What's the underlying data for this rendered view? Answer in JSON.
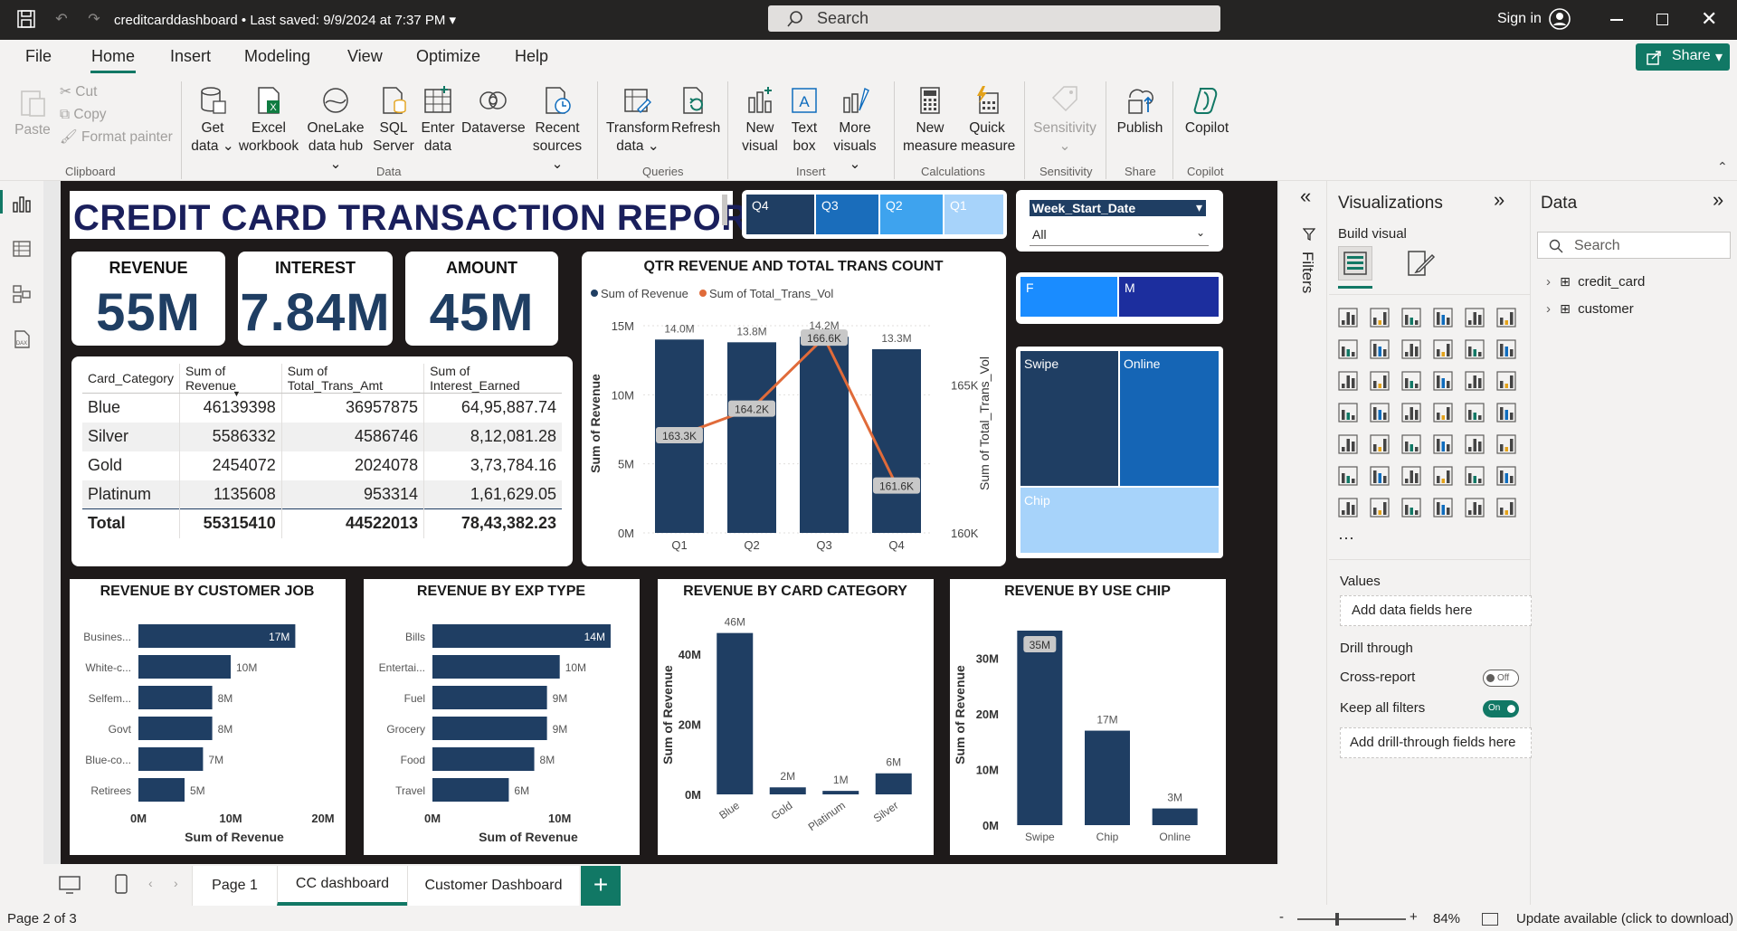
{
  "titlebar": {
    "doc_title": "creditcarddashboard • Last saved: 9/9/2024 at 7:37 PM",
    "search_placeholder": "Search",
    "signin": "Sign in"
  },
  "menu": {
    "items": [
      "File",
      "Home",
      "Insert",
      "Modeling",
      "View",
      "Optimize",
      "Help"
    ],
    "share": "Share"
  },
  "ribbon": {
    "clipboard": {
      "paste": "Paste",
      "cut": "Cut",
      "copy": "Copy",
      "format_painter": "Format painter",
      "group": "Clipboard"
    },
    "data": {
      "get_data": "Get\ndata ⌄",
      "excel": "Excel\nworkbook",
      "onelake": "OneLake\ndata hub ⌄",
      "sql": "SQL\nServer",
      "enter": "Enter\ndata",
      "dataverse": "Dataverse",
      "recent": "Recent\nsources ⌄",
      "group": "Data"
    },
    "queries": {
      "transform": "Transform\ndata ⌄",
      "refresh": "Refresh",
      "group": "Queries"
    },
    "insert": {
      "new_visual": "New\nvisual",
      "text_box": "Text\nbox",
      "more_visuals": "More\nvisuals ⌄",
      "group": "Insert"
    },
    "calculations": {
      "new_measure": "New\nmeasure",
      "quick_measure": "Quick\nmeasure",
      "group": "Calculations"
    },
    "sensitivity": {
      "label": "Sensitivity\n⌄",
      "group": "Sensitivity"
    },
    "share": {
      "publish": "Publish",
      "group": "Share"
    },
    "copilot": {
      "label": "Copilot",
      "group": "Copilot"
    }
  },
  "report": {
    "title": "CREDIT CARD TRANSACTION REPORT",
    "quarter_slicer": [
      "Q4",
      "Q3",
      "Q2",
      "Q1"
    ],
    "week_slicer": {
      "label": "Week_Start_Date",
      "value": "All"
    },
    "gender_slicer": [
      "F",
      "M"
    ],
    "kpis": [
      {
        "label": "REVENUE",
        "value": "55M"
      },
      {
        "label": "INTEREST",
        "value": "7.84M"
      },
      {
        "label": "AMOUNT",
        "value": "45M"
      }
    ],
    "matrix": {
      "headers": [
        "Card_Category",
        "Sum of Revenue",
        "Sum of Total_Trans_Amt",
        "Sum of Interest_Earned"
      ],
      "rows": [
        [
          "Blue",
          "46139398",
          "36957875",
          "64,95,887.74"
        ],
        [
          "Silver",
          "5586332",
          "4586746",
          "8,12,081.28"
        ],
        [
          "Gold",
          "2454072",
          "2024078",
          "3,73,784.16"
        ],
        [
          "Platinum",
          "1135608",
          "953314",
          "1,61,629.05"
        ]
      ],
      "total": [
        "Total",
        "55315410",
        "44522013",
        "78,43,382.23"
      ]
    },
    "treemap": {
      "items": [
        "Swipe",
        "Online",
        "Chip"
      ]
    }
  },
  "chart_data": [
    {
      "type": "bar+line",
      "title": "QTR REVENUE AND TOTAL TRANS COUNT",
      "categories": [
        "Q1",
        "Q2",
        "Q3",
        "Q4"
      ],
      "series": [
        {
          "name": "Sum of Revenue",
          "values": [
            14.0,
            13.8,
            14.2,
            13.3
          ],
          "labels": [
            "14.0M",
            "13.8M",
            "14.2M",
            "13.3M"
          ],
          "color": "#1f3e63"
        },
        {
          "name": "Sum of Total_Trans_Vol",
          "values": [
            163.3,
            164.2,
            166.6,
            161.6
          ],
          "labels": [
            "163.3K",
            "164.2K",
            "166.6K",
            "161.6K"
          ],
          "color": "#e06b3a"
        }
      ],
      "ylabel": "Sum of Revenue",
      "y2label": "Sum of Total_Trans_Vol",
      "yticks": [
        "0M",
        "5M",
        "10M",
        "15M"
      ],
      "y2ticks": [
        "160K",
        "165K"
      ],
      "ylim": [
        0,
        15
      ],
      "y2lim": [
        160,
        167
      ]
    },
    {
      "type": "hbar",
      "title": "REVENUE BY CUSTOMER JOB",
      "categories": [
        "Busines...",
        "White-c...",
        "Selfem...",
        "Govt",
        "Blue-co...",
        "Retirees"
      ],
      "values": [
        17,
        10,
        8,
        8,
        7,
        5
      ],
      "labels": [
        "17M",
        "10M",
        "8M",
        "8M",
        "7M",
        "5M"
      ],
      "xlabel": "Sum of Revenue",
      "xticks": [
        "0M",
        "10M",
        "20M"
      ],
      "xlim": [
        0,
        20
      ]
    },
    {
      "type": "hbar",
      "title": "REVENUE BY EXP TYPE",
      "categories": [
        "Bills",
        "Entertai...",
        "Fuel",
        "Grocery",
        "Food",
        "Travel"
      ],
      "values": [
        14,
        10,
        9,
        9,
        8,
        6
      ],
      "labels": [
        "14M",
        "10M",
        "9M",
        "9M",
        "8M",
        "6M"
      ],
      "xlabel": "Sum of Revenue",
      "xticks": [
        "0M",
        "10M"
      ],
      "xlim": [
        0,
        14.5
      ]
    },
    {
      "type": "bar",
      "title": "REVENUE BY CARD CATEGORY",
      "categories": [
        "Blue",
        "Gold",
        "Platinum",
        "Silver"
      ],
      "values": [
        46,
        2,
        1,
        6
      ],
      "labels": [
        "46M",
        "2M",
        "1M",
        "6M"
      ],
      "ylabel": "Sum of Revenue",
      "yticks": [
        "0M",
        "20M",
        "40M"
      ],
      "ylim": [
        0,
        49
      ]
    },
    {
      "type": "bar",
      "title": "REVENUE BY USE CHIP",
      "categories": [
        "Swipe",
        "Chip",
        "Online"
      ],
      "values": [
        35,
        17,
        3
      ],
      "labels": [
        "35M",
        "17M",
        "3M"
      ],
      "ylabel": "Sum of Revenue",
      "yticks": [
        "0M",
        "10M",
        "20M",
        "30M"
      ],
      "ylim": [
        0,
        35
      ]
    }
  ],
  "panes": {
    "filters": "Filters",
    "visualizations": {
      "title": "Visualizations",
      "build_visual": "Build visual",
      "values": "Values",
      "add_fields": "Add data fields here",
      "drill_through": "Drill through",
      "cross_report": "Cross-report",
      "cross_report_state": "Off",
      "keep_filters": "Keep all filters",
      "keep_filters_state": "On",
      "add_drill": "Add drill-through fields here"
    },
    "data": {
      "title": "Data",
      "search_placeholder": "Search",
      "tables": [
        "credit_card",
        "customer"
      ]
    }
  },
  "pages": [
    "Page 1",
    "CC dashboard",
    "Customer Dashboard"
  ],
  "status": {
    "page": "Page 2 of 3",
    "zoom": "84%",
    "update": "Update available (click to download)"
  }
}
